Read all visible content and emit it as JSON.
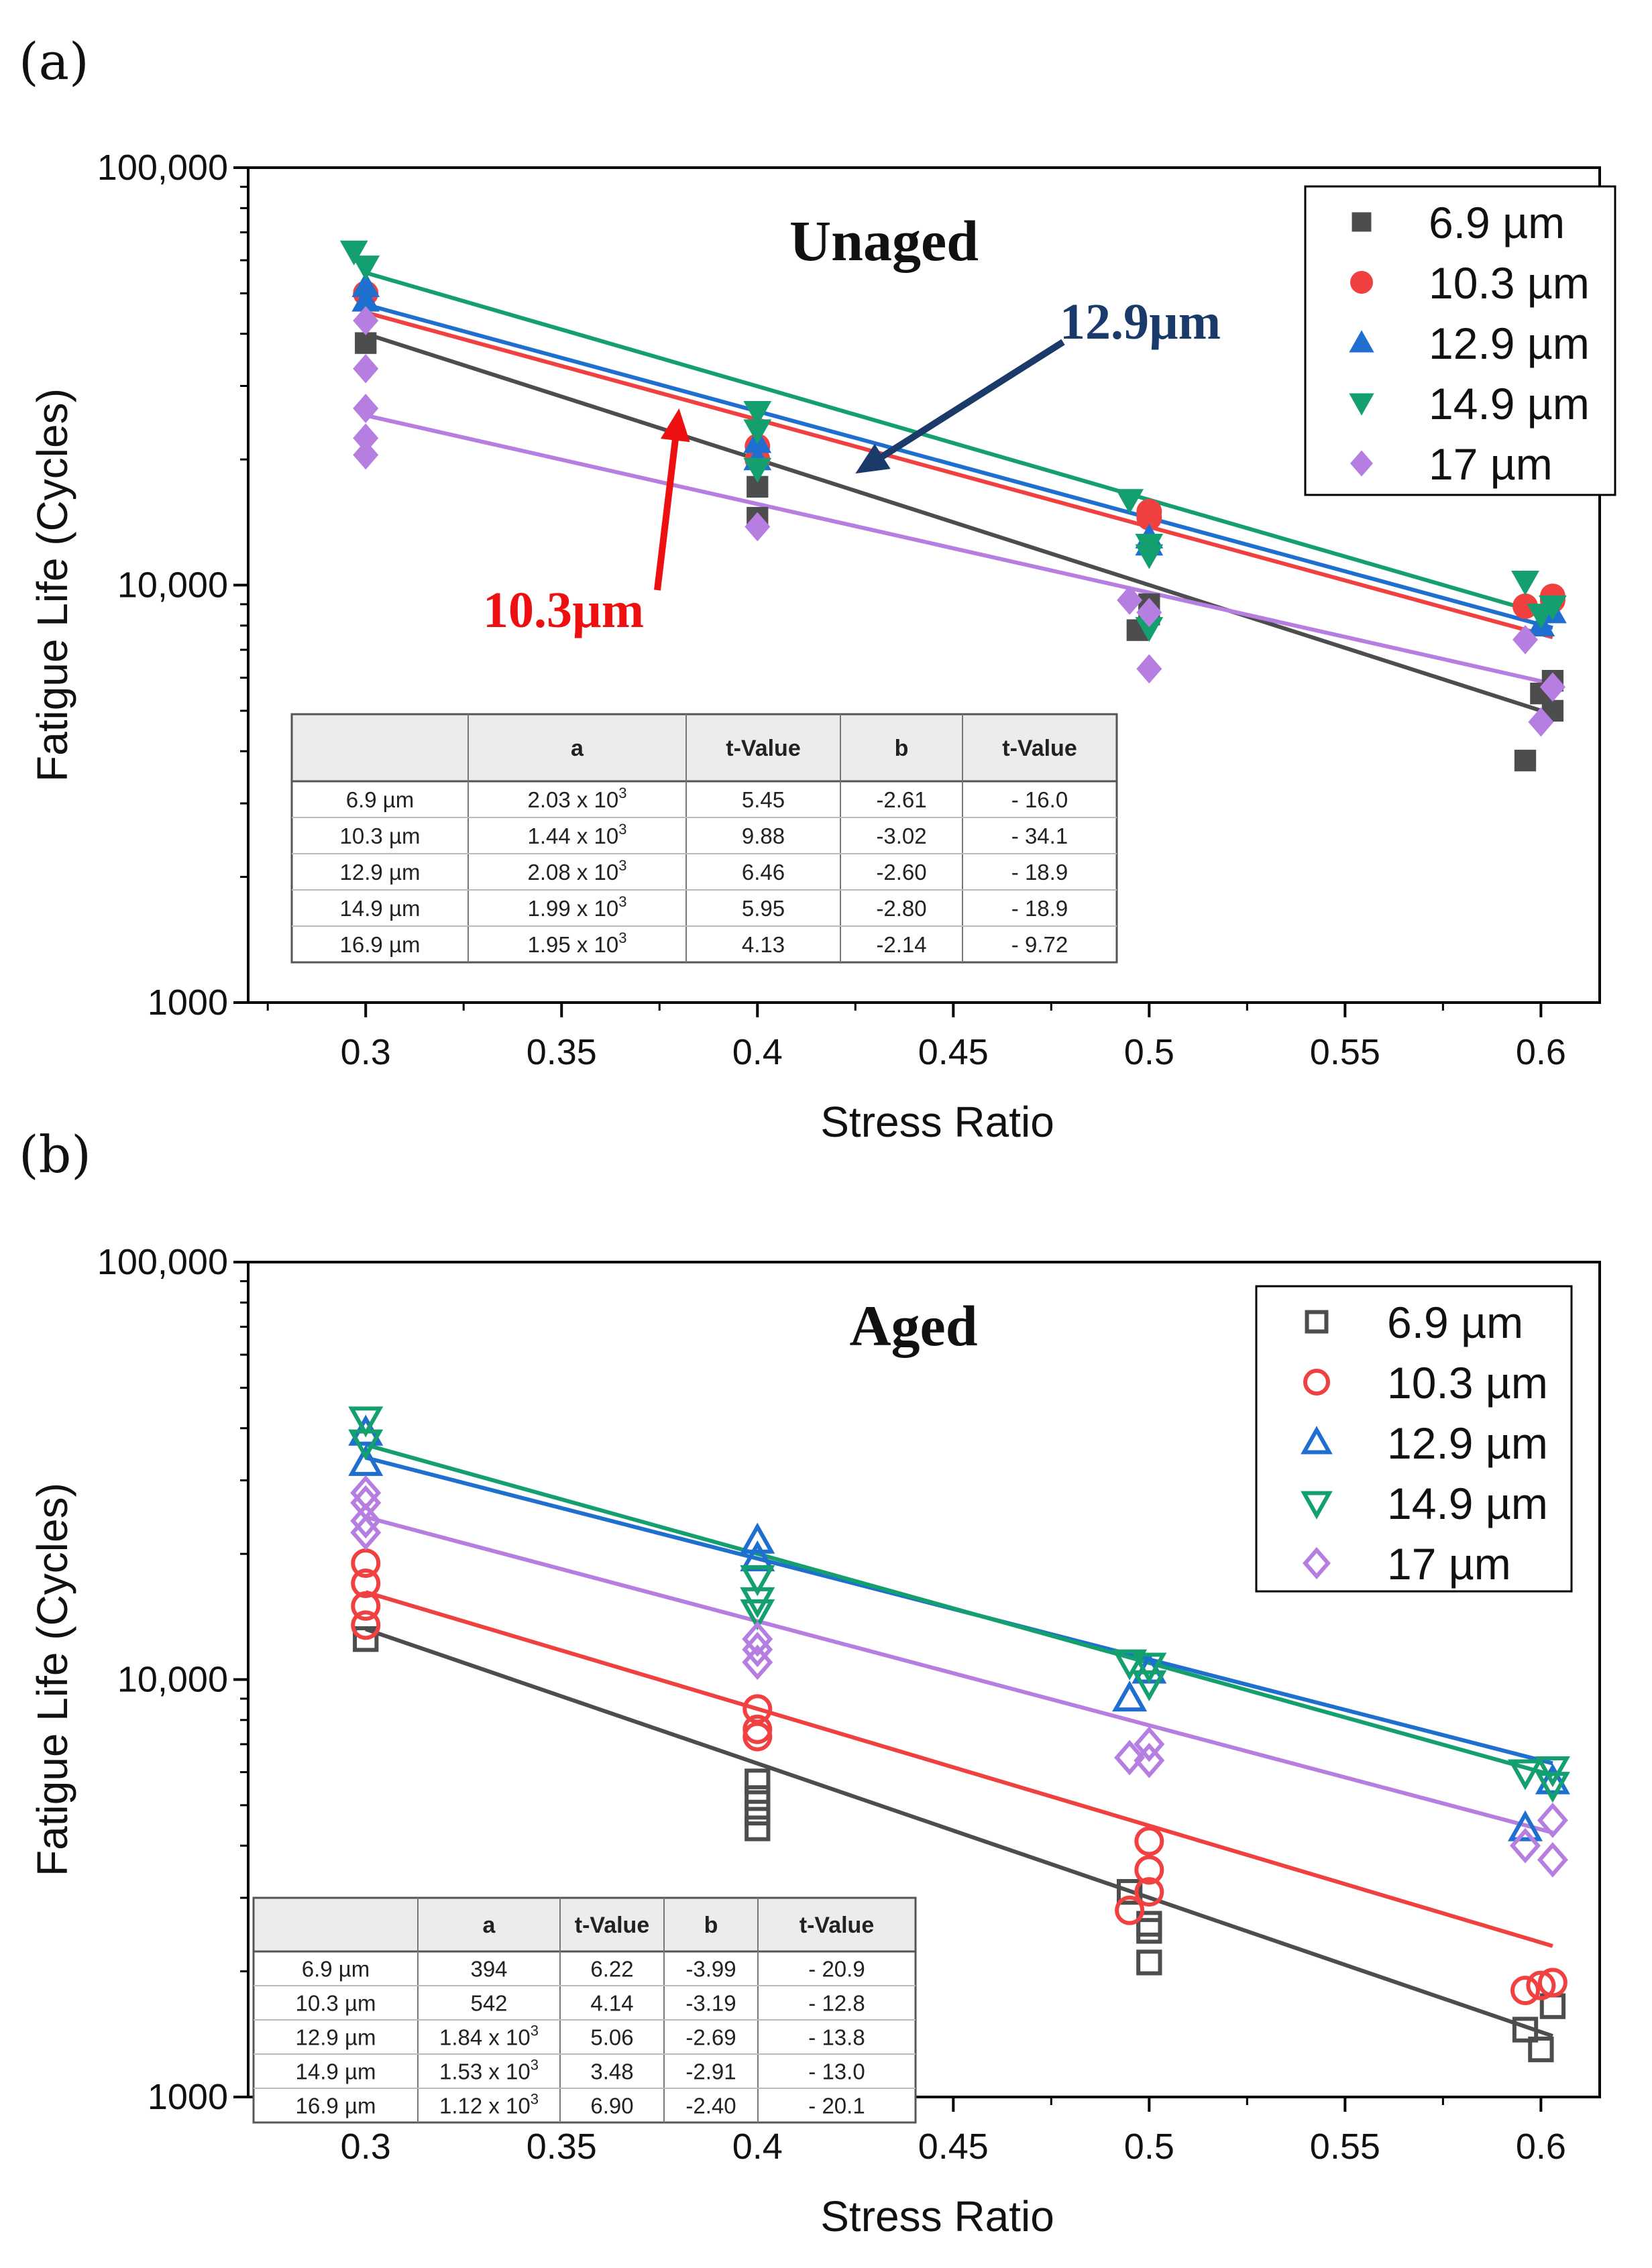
{
  "chart_data": [
    {
      "panel_label": "(a)",
      "type": "scatter",
      "title": "Unaged",
      "xlabel": "Stress Ratio",
      "ylabel": "Fatigue Life (Cycles)",
      "y_scale": "log",
      "xlim": [
        0.27,
        0.615
      ],
      "ylim": [
        1000,
        100000
      ],
      "x_ticks": [
        "0.3",
        "0.35",
        "0.4",
        "0.45",
        "0.5",
        "0.55",
        "0.6"
      ],
      "y_ticks": [
        "1000",
        "10,000",
        "100,000"
      ],
      "marker_style": "filled",
      "legend_position": "top-right",
      "series": [
        {
          "name": "6.9 µm",
          "color": "#4d4d4d",
          "marker": "square",
          "points": [
            [
              0.3,
              38000
            ],
            [
              0.4,
              17200
            ],
            [
              0.4,
              14500
            ],
            [
              0.497,
              7800
            ],
            [
              0.5,
              9000
            ],
            [
              0.5,
              8500
            ],
            [
              0.596,
              3800
            ],
            [
              0.6,
              5500
            ],
            [
              0.603,
              5900
            ],
            [
              0.603,
              5000
            ]
          ],
          "fit": [
            [
              0.3,
              40000
            ],
            [
              0.603,
              4900
            ]
          ]
        },
        {
          "name": "10.3 µm",
          "color": "#f04040",
          "marker": "circle",
          "points": [
            [
              0.3,
              50000
            ],
            [
              0.4,
              21500
            ],
            [
              0.4,
              20000
            ],
            [
              0.5,
              15000
            ],
            [
              0.5,
              14500
            ],
            [
              0.596,
              8900
            ],
            [
              0.603,
              9400
            ],
            [
              0.603,
              9200
            ]
          ],
          "fit": [
            [
              0.3,
              45000
            ],
            [
              0.603,
              7500
            ]
          ]
        },
        {
          "name": "12.9 µm",
          "color": "#1f6fd0",
          "marker": "triangle-up",
          "points": [
            [
              0.3,
              52000
            ],
            [
              0.3,
              48000
            ],
            [
              0.4,
              22000
            ],
            [
              0.4,
              20000
            ],
            [
              0.5,
              13000
            ],
            [
              0.5,
              12500
            ],
            [
              0.6,
              8000
            ],
            [
              0.603,
              8600
            ]
          ],
          "fit": [
            [
              0.3,
              47000
            ],
            [
              0.603,
              7900
            ]
          ]
        },
        {
          "name": "14.9 µm",
          "color": "#14a06e",
          "marker": "triangle-down",
          "points": [
            [
              0.297,
              63000
            ],
            [
              0.3,
              58000
            ],
            [
              0.4,
              26000
            ],
            [
              0.4,
              23500
            ],
            [
              0.4,
              19000
            ],
            [
              0.495,
              16000
            ],
            [
              0.5,
              12500
            ],
            [
              0.5,
              11800
            ],
            [
              0.5,
              7900
            ],
            [
              0.596,
              10200
            ],
            [
              0.6,
              8500
            ],
            [
              0.603,
              8900
            ]
          ],
          "fit": [
            [
              0.3,
              56000
            ],
            [
              0.603,
              8400
            ]
          ]
        },
        {
          "name": "17 µm",
          "color": "#b57ee0",
          "marker": "diamond",
          "points": [
            [
              0.3,
              43000
            ],
            [
              0.3,
              33000
            ],
            [
              0.3,
              26500
            ],
            [
              0.3,
              22500
            ],
            [
              0.3,
              20500
            ],
            [
              0.4,
              13800
            ],
            [
              0.495,
              9200
            ],
            [
              0.5,
              8600
            ],
            [
              0.5,
              6300
            ],
            [
              0.596,
              7400
            ],
            [
              0.6,
              4700
            ],
            [
              0.603,
              5700
            ]
          ],
          "fit": [
            [
              0.3,
              25500
            ],
            [
              0.603,
              5800
            ]
          ]
        }
      ],
      "annotations": [
        {
          "text": "12.9µm",
          "color": "#1a3a6a",
          "target": [
            0.425,
            18500
          ]
        },
        {
          "text": "10.3µm",
          "color": "#ee1010",
          "target": [
            0.38,
            26500
          ]
        }
      ],
      "table": {
        "headers": [
          "",
          "a",
          "t-Value",
          "b",
          "t-Value"
        ],
        "rows": [
          {
            "label": "6.9 µm",
            "a_mant": "2.03 x 10",
            "a_exp": "3",
            "t1": "5.45",
            "b": "-2.61",
            "t2": "- 16.0"
          },
          {
            "label": "10.3 µm",
            "a_mant": "1.44 x 10",
            "a_exp": "3",
            "t1": "9.88",
            "b": "-3.02",
            "t2": "- 34.1"
          },
          {
            "label": "12.9 µm",
            "a_mant": "2.08 x 10",
            "a_exp": "3",
            "t1": "6.46",
            "b": "-2.60",
            "t2": "- 18.9"
          },
          {
            "label": "14.9 µm",
            "a_mant": "1.99 x 10",
            "a_exp": "3",
            "t1": "5.95",
            "b": "-2.80",
            "t2": "- 18.9"
          },
          {
            "label": "16.9 µm",
            "a_mant": "1.95 x 10",
            "a_exp": "3",
            "t1": "4.13",
            "b": "-2.14",
            "t2": "- 9.72"
          }
        ]
      }
    },
    {
      "panel_label": "(b)",
      "type": "scatter",
      "title": "Aged",
      "xlabel": "Stress Ratio",
      "ylabel": "Fatigue Life (Cycles)",
      "y_scale": "log",
      "xlim": [
        0.27,
        0.615
      ],
      "ylim": [
        1000,
        100000
      ],
      "x_ticks": [
        "0.3",
        "0.35",
        "0.4",
        "0.45",
        "0.5",
        "0.55",
        "0.6"
      ],
      "y_ticks": [
        "1000",
        "10,000",
        "100,000"
      ],
      "marker_style": "hollow",
      "legend_position": "top-right",
      "series": [
        {
          "name": "6.9 µm",
          "color": "#4d4d4d",
          "marker": "square",
          "points": [
            [
              0.3,
              12500
            ],
            [
              0.4,
              5700
            ],
            [
              0.4,
              5200
            ],
            [
              0.4,
              4800
            ],
            [
              0.4,
              4400
            ],
            [
              0.495,
              3100
            ],
            [
              0.5,
              2600
            ],
            [
              0.5,
              2500
            ],
            [
              0.5,
              2100
            ],
            [
              0.596,
              1450
            ],
            [
              0.6,
              1300
            ],
            [
              0.603,
              1650
            ]
          ],
          "fit": [
            [
              0.3,
              13200
            ],
            [
              0.603,
              1400
            ]
          ]
        },
        {
          "name": "10.3 µm",
          "color": "#f04040",
          "marker": "circle",
          "points": [
            [
              0.3,
              19000
            ],
            [
              0.3,
              17000
            ],
            [
              0.3,
              15000
            ],
            [
              0.3,
              13500
            ],
            [
              0.4,
              8500
            ],
            [
              0.4,
              7600
            ],
            [
              0.4,
              7300
            ],
            [
              0.495,
              2800
            ],
            [
              0.5,
              4100
            ],
            [
              0.5,
              3500
            ],
            [
              0.5,
              3100
            ],
            [
              0.596,
              1800
            ],
            [
              0.6,
              1850
            ],
            [
              0.603,
              1880
            ]
          ],
          "fit": [
            [
              0.3,
              16200
            ],
            [
              0.603,
              2300
            ]
          ]
        },
        {
          "name": "12.9 µm",
          "color": "#1f6fd0",
          "marker": "triangle-up",
          "points": [
            [
              0.3,
              39000
            ],
            [
              0.3,
              33000
            ],
            [
              0.4,
              21500
            ],
            [
              0.4,
              19500
            ],
            [
              0.495,
              9000
            ],
            [
              0.5,
              10500
            ],
            [
              0.596,
              4400
            ],
            [
              0.603,
              5700
            ]
          ],
          "fit": [
            [
              0.3,
              34000
            ],
            [
              0.603,
              6300
            ]
          ]
        },
        {
          "name": "14.9 µm",
          "color": "#14a06e",
          "marker": "triangle-down",
          "points": [
            [
              0.3,
              42000
            ],
            [
              0.3,
              37000
            ],
            [
              0.4,
              17500
            ],
            [
              0.4,
              15500
            ],
            [
              0.4,
              14500
            ],
            [
              0.495,
              11000
            ],
            [
              0.5,
              10800
            ],
            [
              0.5,
              9800
            ],
            [
              0.596,
              6000
            ],
            [
              0.603,
              6100
            ],
            [
              0.603,
              5600
            ]
          ],
          "fit": [
            [
              0.3,
              36500
            ],
            [
              0.603,
              5900
            ]
          ]
        },
        {
          "name": "17 µm",
          "color": "#b57ee0",
          "marker": "diamond",
          "points": [
            [
              0.3,
              28000
            ],
            [
              0.3,
              26500
            ],
            [
              0.3,
              24000
            ],
            [
              0.3,
              22500
            ],
            [
              0.4,
              12500
            ],
            [
              0.4,
              11800
            ],
            [
              0.4,
              11000
            ],
            [
              0.495,
              6500
            ],
            [
              0.5,
              7000
            ],
            [
              0.5,
              6400
            ],
            [
              0.596,
              4000
            ],
            [
              0.603,
              4600
            ],
            [
              0.603,
              3700
            ]
          ],
          "fit": [
            [
              0.3,
              24500
            ],
            [
              0.603,
              4300
            ]
          ]
        }
      ],
      "annotations": [],
      "table": {
        "headers": [
          "",
          "a",
          "t-Value",
          "b",
          "t-Value"
        ],
        "rows": [
          {
            "label": "6.9 µm",
            "a_mant": "394",
            "a_exp": "",
            "t1": "6.22",
            "b": "-3.99",
            "t2": "- 20.9"
          },
          {
            "label": "10.3 µm",
            "a_mant": "542",
            "a_exp": "",
            "t1": "4.14",
            "b": "-3.19",
            "t2": "- 12.8"
          },
          {
            "label": "12.9 µm",
            "a_mant": "1.84 x 10",
            "a_exp": "3",
            "t1": "5.06",
            "b": "-2.69",
            "t2": "- 13.8"
          },
          {
            "label": "14.9 µm",
            "a_mant": "1.53 x 10",
            "a_exp": "3",
            "t1": "3.48",
            "b": "-2.91",
            "t2": "- 13.0"
          },
          {
            "label": "16.9 µm",
            "a_mant": "1.12 x 10",
            "a_exp": "3",
            "t1": "6.90",
            "b": "-2.40",
            "t2": "- 20.1"
          }
        ]
      }
    }
  ]
}
